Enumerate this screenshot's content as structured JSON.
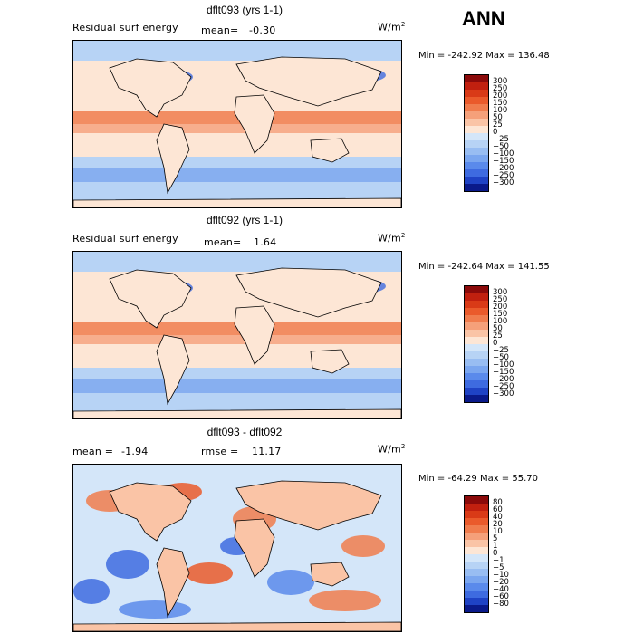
{
  "season": "ANN",
  "panels": [
    {
      "title": "dflt093 (yrs 1-1)",
      "left_label": "Residual surf energy",
      "stat_label": "mean=",
      "stat_value": "-0.30",
      "stat2_label": "",
      "stat2_value": "",
      "units_base": "W/m",
      "units_exp": "2",
      "min_label": "Min =",
      "min_value": "-242.92",
      "max_label": "Max =",
      "max_value": "136.48",
      "colorbar": {
        "levels": [
          "300",
          "250",
          "200",
          "150",
          "100",
          "50",
          "25",
          "0",
          "−25",
          "−50",
          "−100",
          "−150",
          "−200",
          "−250",
          "−300"
        ],
        "colors": [
          "#8b0a0a",
          "#c1200f",
          "#d93a17",
          "#ea5a2b",
          "#f07c4d",
          "#f5a07a",
          "#fac4a6",
          "#fde6d5",
          "#d4e6f9",
          "#b7d3f5",
          "#98bdf2",
          "#7aa6ef",
          "#5a8aeb",
          "#3e6be0",
          "#1f43c5",
          "#0a1a8a"
        ]
      }
    },
    {
      "title": "dflt092 (yrs 1-1)",
      "left_label": "Residual surf energy",
      "stat_label": "mean=",
      "stat_value": "1.64",
      "stat2_label": "",
      "stat2_value": "",
      "units_base": "W/m",
      "units_exp": "2",
      "min_label": "Min =",
      "min_value": "-242.64",
      "max_label": "Max =",
      "max_value": "141.55",
      "colorbar": {
        "levels": [
          "300",
          "250",
          "200",
          "150",
          "100",
          "50",
          "25",
          "0",
          "−25",
          "−50",
          "−100",
          "−150",
          "−200",
          "−250",
          "−300"
        ],
        "colors": [
          "#8b0a0a",
          "#c1200f",
          "#d93a17",
          "#ea5a2b",
          "#f07c4d",
          "#f5a07a",
          "#fac4a6",
          "#fde6d5",
          "#d4e6f9",
          "#b7d3f5",
          "#98bdf2",
          "#7aa6ef",
          "#5a8aeb",
          "#3e6be0",
          "#1f43c5",
          "#0a1a8a"
        ]
      }
    },
    {
      "title": "dflt093 - dflt092",
      "left_label": "",
      "stat_label": "mean =",
      "stat_value": "-1.94",
      "stat2_label": "rmse =",
      "stat2_value": "11.17",
      "units_base": "W/m",
      "units_exp": "2",
      "min_label": "Min =",
      "min_value": "-64.29",
      "max_label": "Max =",
      "max_value": "55.70",
      "colorbar": {
        "levels": [
          "80",
          "60",
          "40",
          "20",
          "10",
          "5",
          "1",
          "0",
          "−1",
          "−5",
          "−10",
          "−20",
          "−40",
          "−60",
          "−80"
        ],
        "colors": [
          "#8b0a0a",
          "#c1200f",
          "#d93a17",
          "#ea5a2b",
          "#f07c4d",
          "#f5a07a",
          "#fac4a6",
          "#fde6d5",
          "#d4e6f9",
          "#b7d3f5",
          "#98bdf2",
          "#7aa6ef",
          "#5a8aeb",
          "#3e6be0",
          "#1f43c5",
          "#0a1a8a"
        ]
      }
    }
  ]
}
